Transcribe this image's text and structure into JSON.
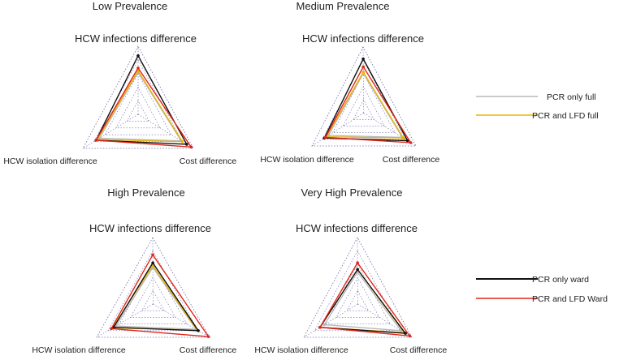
{
  "series_styles": [
    {
      "name": "PCR  only  full",
      "color": "#b8b8bc"
    },
    {
      "name": "PCR and LFD full",
      "color": "#e8b400"
    },
    {
      "name": "PCR only ward",
      "color": "#111111"
    },
    {
      "name": "PCR and LFD Ward",
      "color": "#e0261c"
    }
  ],
  "legend": {
    "top": [
      "PCR  only  full",
      "PCR and LFD full"
    ],
    "bottom": [
      "PCR only ward",
      "PCR and LFD Ward"
    ]
  },
  "chart_data": [
    {
      "type": "radar",
      "title": "Low Prevalence",
      "axes": [
        "HCW infections difference",
        "HCW isolation difference",
        "Cost difference"
      ],
      "rings": 5,
      "range": [
        0,
        1
      ],
      "series": [
        {
          "name": "PCR  only  full",
          "values": [
            0.62,
            0.7,
            0.78
          ]
        },
        {
          "name": "PCR and LFD full",
          "values": [
            0.64,
            0.74,
            0.8
          ]
        },
        {
          "name": "PCR only ward",
          "values": [
            0.86,
            0.76,
            0.88
          ]
        },
        {
          "name": "PCR and LFD Ward",
          "values": [
            0.68,
            0.76,
            0.96
          ]
        }
      ]
    },
    {
      "type": "radar",
      "title": "Medium Prevalence",
      "axes": [
        "HCW infections difference",
        "HCW isolation difference",
        "Cost difference"
      ],
      "rings": 5,
      "range": [
        0,
        1
      ],
      "series": [
        {
          "name": "PCR  only  full",
          "values": [
            0.6,
            0.68,
            0.74
          ]
        },
        {
          "name": "PCR and LFD full",
          "values": [
            0.62,
            0.72,
            0.76
          ]
        },
        {
          "name": "PCR only ward",
          "values": [
            0.82,
            0.76,
            0.84
          ]
        },
        {
          "name": "PCR and LFD Ward",
          "values": [
            0.7,
            0.74,
            0.9
          ]
        }
      ]
    },
    {
      "type": "radar",
      "title": "High Prevalence",
      "axes": [
        "HCW infections difference",
        "HCW isolation difference",
        "Cost difference"
      ],
      "rings": 5,
      "range": [
        0,
        1
      ],
      "series": [
        {
          "name": "PCR  only  full",
          "values": [
            0.55,
            0.66,
            0.76
          ]
        },
        {
          "name": "PCR and LFD full",
          "values": [
            0.58,
            0.72,
            0.78
          ]
        },
        {
          "name": "PCR only ward",
          "values": [
            0.62,
            0.7,
            0.8
          ]
        },
        {
          "name": "PCR and LFD Ward",
          "values": [
            0.74,
            0.74,
            0.98
          ]
        }
      ]
    },
    {
      "type": "radar",
      "title": "Very High Prevalence",
      "axes": [
        "HCW infections difference",
        "HCW isolation difference",
        "Cost difference"
      ],
      "rings": 5,
      "range": [
        0,
        1
      ],
      "series": [
        {
          "name": "PCR  only  full",
          "values": [
            0.48,
            0.62,
            0.8
          ]
        },
        {
          "name": "PCR and LFD full",
          "values": [
            0.52,
            0.7,
            0.86
          ]
        },
        {
          "name": "PCR only ward",
          "values": [
            0.52,
            0.7,
            0.88
          ]
        },
        {
          "name": "PCR and LFD Ward",
          "values": [
            0.62,
            0.7,
            0.96
          ]
        }
      ]
    }
  ]
}
